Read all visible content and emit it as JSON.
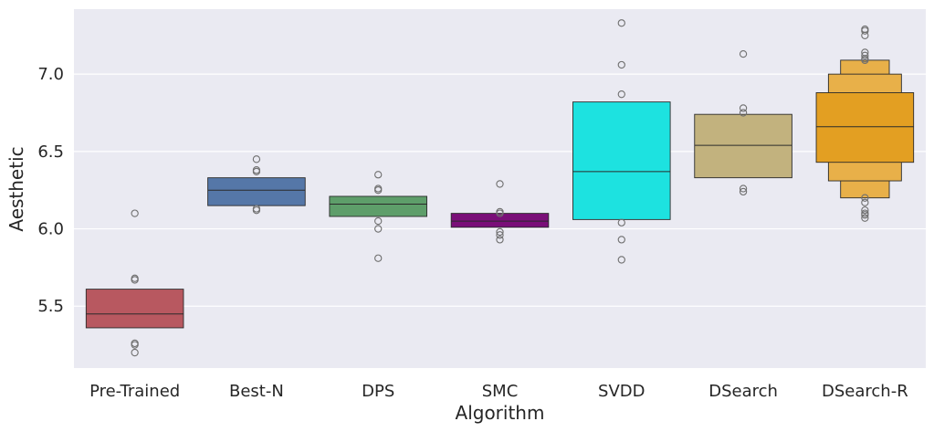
{
  "chart_data": {
    "type": "boxen",
    "title": "",
    "xlabel": "Algorithm",
    "ylabel": "Aesthetic",
    "ylim": [
      5.1,
      7.42
    ],
    "yticks": [
      5.5,
      6.0,
      6.5,
      7.0
    ],
    "ytick_labels": [
      "5.5",
      "6.0",
      "6.5",
      "7.0"
    ],
    "grid": true,
    "categories": [
      "Pre-Trained",
      "Best-N",
      "DPS",
      "SMC",
      "SVDD",
      "DSearch",
      "DSearch-R"
    ],
    "series": [
      {
        "name": "Pre-Trained",
        "color": "#b85860",
        "boxes": [
          [
            5.36,
            5.61
          ]
        ],
        "median": 5.45,
        "outliers": [
          6.1,
          5.68,
          5.67,
          5.26,
          5.25,
          5.2
        ]
      },
      {
        "name": "Best-N",
        "color": "#5577a8",
        "boxes": [
          [
            6.15,
            6.33
          ]
        ],
        "median": 6.25,
        "outliers": [
          6.45,
          6.38,
          6.37,
          6.13,
          6.12
        ]
      },
      {
        "name": "DPS",
        "color": "#5e9e6a",
        "boxes": [
          [
            6.08,
            6.21
          ]
        ],
        "median": 6.16,
        "outliers": [
          6.35,
          6.26,
          6.25,
          6.05,
          6.0,
          5.81
        ]
      },
      {
        "name": "SMC",
        "color": "#7a0f78",
        "boxes": [
          [
            6.01,
            6.1
          ]
        ],
        "median": 6.05,
        "outliers": [
          6.29,
          6.11,
          6.1,
          5.98,
          5.96,
          5.93
        ]
      },
      {
        "name": "SVDD",
        "color": "#1de2e0",
        "boxes": [
          [
            6.06,
            6.82
          ]
        ],
        "median": 6.37,
        "outliers": [
          7.33,
          7.06,
          6.87,
          6.04,
          5.93,
          5.8
        ]
      },
      {
        "name": "DSearch",
        "color": "#c2b27e",
        "boxes": [
          [
            6.33,
            6.74
          ]
        ],
        "median": 6.54,
        "outliers": [
          7.13,
          6.78,
          6.75,
          6.26,
          6.24
        ]
      },
      {
        "name": "DSearch-R",
        "color": "#e39f22",
        "lighter_color": "#e8b049",
        "boxes": [
          [
            6.43,
            6.88
          ],
          [
            6.31,
            7.0
          ],
          [
            6.2,
            7.09
          ]
        ],
        "median": 6.66,
        "outliers": [
          7.29,
          7.28,
          7.25,
          7.14,
          7.12,
          7.1,
          7.09,
          6.2,
          6.17,
          6.12,
          6.1,
          6.09,
          6.07
        ]
      }
    ]
  }
}
